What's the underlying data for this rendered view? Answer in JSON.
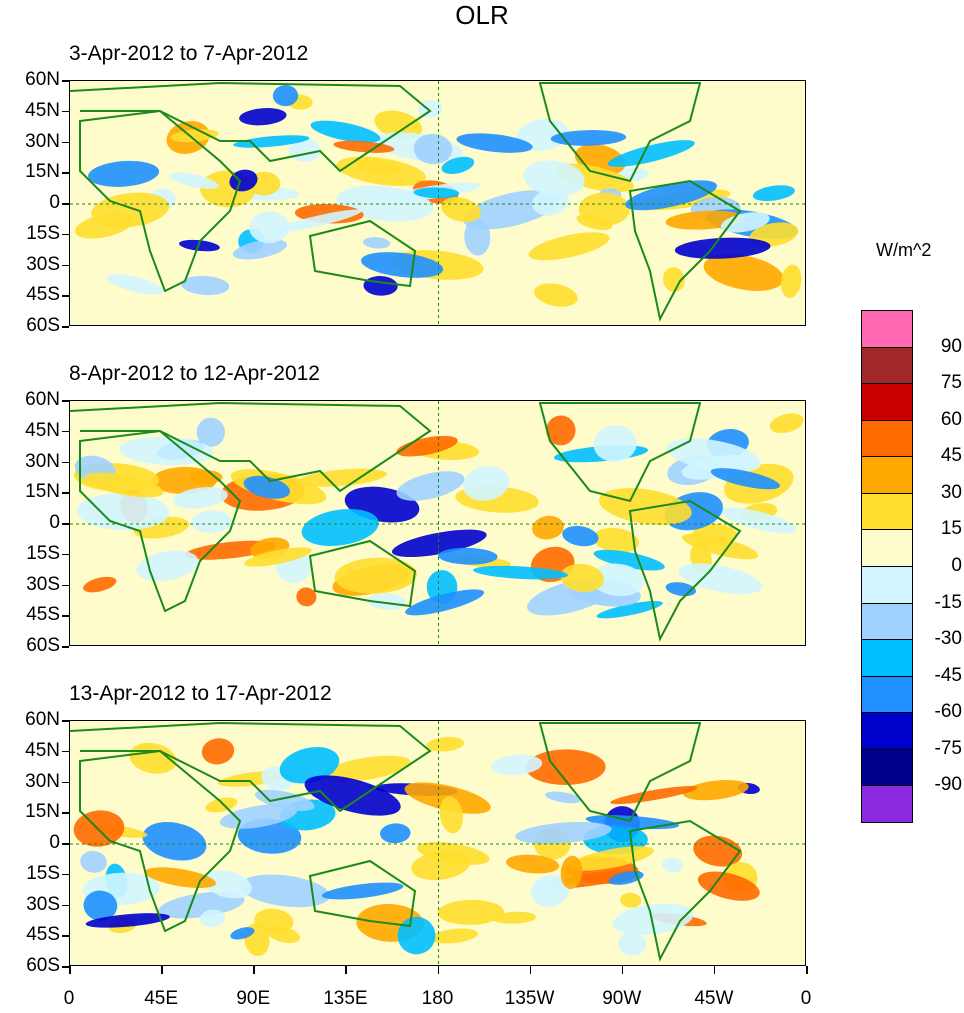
{
  "title": "OLR",
  "panels": [
    {
      "title": "3-Apr-2012 to 7-Apr-2012"
    },
    {
      "title": "8-Apr-2012 to 12-Apr-2012"
    },
    {
      "title": "13-Apr-2012 to 17-Apr-2012"
    }
  ],
  "lat_labels": [
    "60N",
    "45N",
    "30N",
    "15N",
    "0",
    "15S",
    "30S",
    "45S",
    "60S"
  ],
  "lon_labels": [
    "0",
    "45E",
    "90E",
    "135E",
    "180",
    "135W",
    "90W",
    "45W",
    "0"
  ],
  "colorbar": {
    "unit": "W/m^2",
    "labels": [
      "90",
      "75",
      "60",
      "45",
      "30",
      "15",
      "0",
      "-15",
      "-30",
      "-45",
      "-60",
      "-75",
      "-90"
    ],
    "colors": [
      "#ff69b4",
      "#a02828",
      "#c80000",
      "#ff6a00",
      "#ffa800",
      "#ffde2e",
      "#fffccc",
      "#d2f5ff",
      "#a0d2ff",
      "#00bfff",
      "#1e90ff",
      "#0000cd",
      "#00008b",
      "#8a2be2"
    ]
  }
}
